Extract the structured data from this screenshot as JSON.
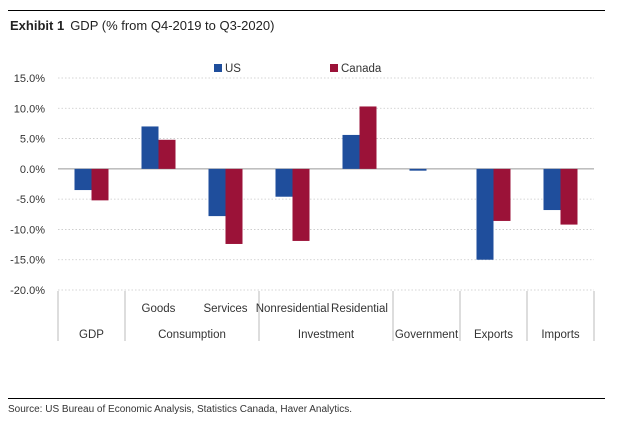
{
  "title": {
    "exhibit": "Exhibit 1",
    "text": "GDP (% from Q4-2019 to Q3-2020)"
  },
  "source": "Source: US Bureau of Economic Analysis, Statistics Canada, Haver Analytics.",
  "chart_data": {
    "type": "bar",
    "ylim": [
      -20,
      15
    ],
    "yticks": [
      15,
      10,
      5,
      0,
      -5,
      -10,
      -15,
      -20
    ],
    "ytick_labels": [
      "15.0%",
      "10.0%",
      "5.0%",
      "0.0%",
      "-5.0%",
      "-10.0%",
      "-15.0%",
      "-20.0%"
    ],
    "grid": true,
    "legend_position": "top-center",
    "categories": [
      "GDP",
      "Goods",
      "Services",
      "Nonresidential",
      "Residential",
      "Government",
      "Exports",
      "Imports"
    ],
    "groups": [
      {
        "label": "GDP",
        "members": [
          ""
        ]
      },
      {
        "label": "Consumption",
        "members": [
          "Goods",
          "Services"
        ]
      },
      {
        "label": "Investment",
        "members": [
          "Nonresidential",
          "Residential"
        ]
      },
      {
        "label": "Government",
        "members": [
          ""
        ]
      },
      {
        "label": "Exports",
        "members": [
          ""
        ]
      },
      {
        "label": "Imports",
        "members": [
          ""
        ]
      }
    ],
    "series": [
      {
        "name": "US",
        "color": "#1f4e9c",
        "values": [
          -3.5,
          7.0,
          -7.8,
          -4.6,
          5.6,
          -0.3,
          -15.0,
          -6.8
        ]
      },
      {
        "name": "Canada",
        "color": "#9b1238",
        "values": [
          -5.2,
          4.8,
          -12.4,
          -11.9,
          10.3,
          0.0,
          -8.6,
          -9.2
        ]
      }
    ]
  }
}
